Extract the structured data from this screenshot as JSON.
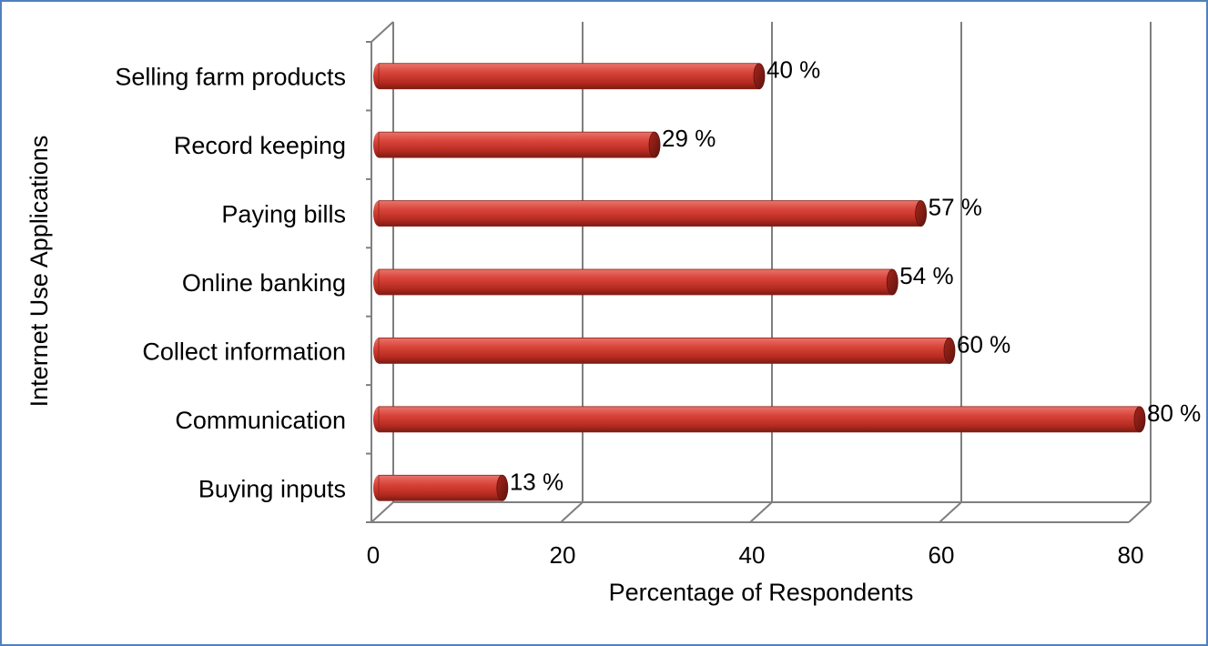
{
  "chart_data": {
    "type": "bar",
    "orientation": "horizontal",
    "style": "3d-cylinder",
    "categories": [
      "Selling farm products",
      "Record keeping",
      "Paying bills",
      "Online banking",
      "Collect information",
      "Communication",
      "Buying inputs"
    ],
    "values": [
      40,
      29,
      57,
      54,
      60,
      80,
      13
    ],
    "data_labels": [
      "40 %",
      "29 %",
      "57 %",
      "54 %",
      "60 %",
      "80 %",
      "13 %"
    ],
    "xlabel": "Percentage of Respondents",
    "ylabel": "Internet  Use Applications",
    "xlim": [
      0,
      80
    ],
    "xticks": [
      0,
      20,
      40,
      60,
      80
    ],
    "xtick_labels": [
      "0",
      "20",
      "40",
      "60",
      "80"
    ],
    "grid": "vertical",
    "legend": "none",
    "colors": {
      "bar": "#c0392b",
      "bar_dark": "#7b1c14",
      "bar_light": "#e8756b",
      "grid": "#7f7f7f",
      "frame": "#4f81bd"
    }
  }
}
